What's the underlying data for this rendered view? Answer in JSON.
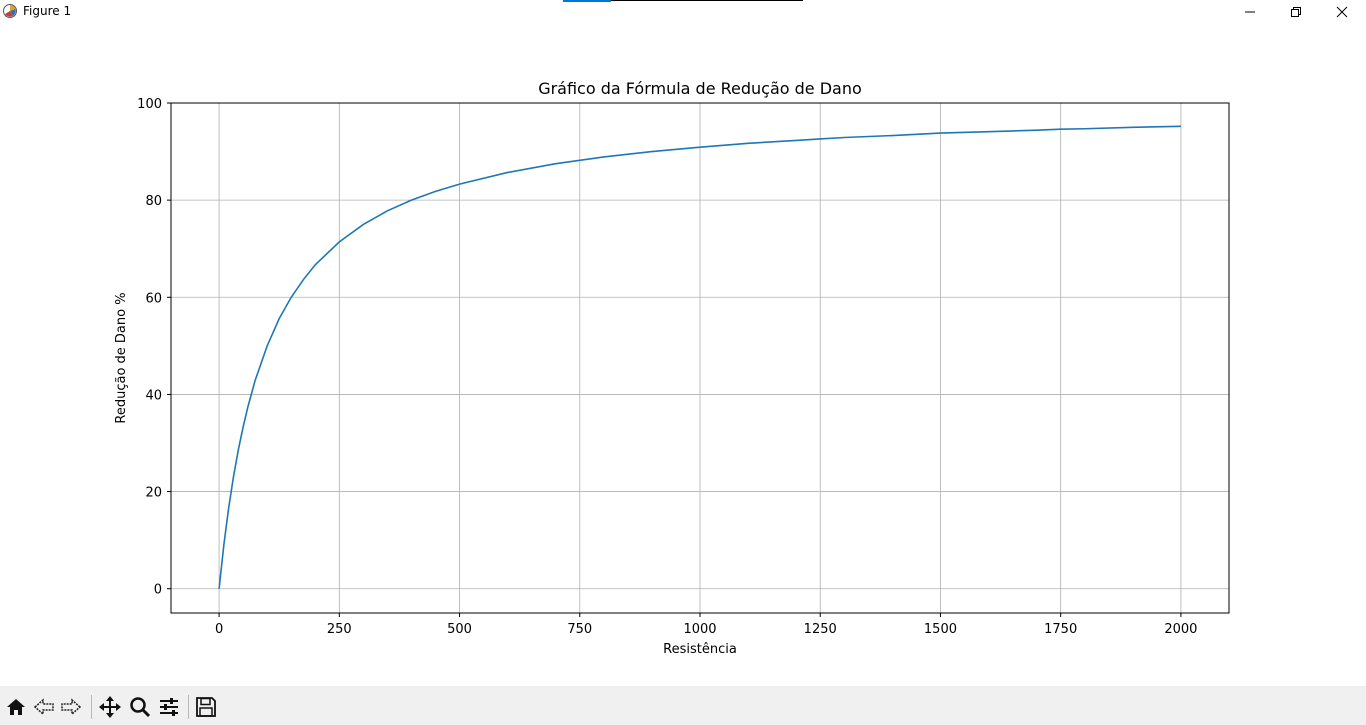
{
  "window": {
    "title": "Figure 1",
    "controls": {
      "minimize_icon": "minimize-icon",
      "maximize_icon": "restore-icon",
      "close_icon": "close-icon"
    }
  },
  "toolbar": {
    "items": [
      "home-icon",
      "back-arrow-icon",
      "forward-arrow-icon",
      "pan-icon",
      "zoom-icon",
      "configure-subplots-icon",
      "save-icon"
    ]
  },
  "chart_data": {
    "type": "line",
    "title": "Gráfico da Fórmula de Redução de Dano",
    "xlabel": "Resistência",
    "ylabel": "Redução de Dano %",
    "xlim": [
      -100,
      2100
    ],
    "ylim": [
      -5,
      100
    ],
    "xticks": [
      0,
      250,
      500,
      750,
      1000,
      1250,
      1500,
      1750,
      2000
    ],
    "xtick_labels": [
      "0",
      "250",
      "500",
      "750",
      "1000",
      "1250",
      "1500",
      "1750",
      "2000"
    ],
    "yticks": [
      0,
      20,
      40,
      60,
      80,
      100
    ],
    "ytick_labels": [
      "0",
      "20",
      "40",
      "60",
      "80",
      "100"
    ],
    "grid": true,
    "line_color": "#1f77b4",
    "series": [
      {
        "x": [
          0,
          10,
          20,
          30,
          40,
          50,
          60,
          75,
          100,
          125,
          150,
          175,
          200,
          250,
          300,
          350,
          400,
          450,
          500,
          600,
          700,
          750,
          800,
          900,
          1000,
          1100,
          1200,
          1250,
          1300,
          1400,
          1500,
          1600,
          1700,
          1750,
          1800,
          1900,
          2000
        ],
        "y": [
          0,
          9.1,
          16.7,
          23.1,
          28.6,
          33.3,
          37.5,
          42.9,
          50.0,
          55.6,
          60.0,
          63.6,
          66.7,
          71.4,
          75.0,
          77.8,
          80.0,
          81.8,
          83.3,
          85.7,
          87.5,
          88.2,
          88.9,
          90.0,
          90.9,
          91.7,
          92.3,
          92.6,
          92.9,
          93.3,
          93.8,
          94.1,
          94.4,
          94.6,
          94.7,
          95.0,
          95.2
        ]
      }
    ]
  }
}
